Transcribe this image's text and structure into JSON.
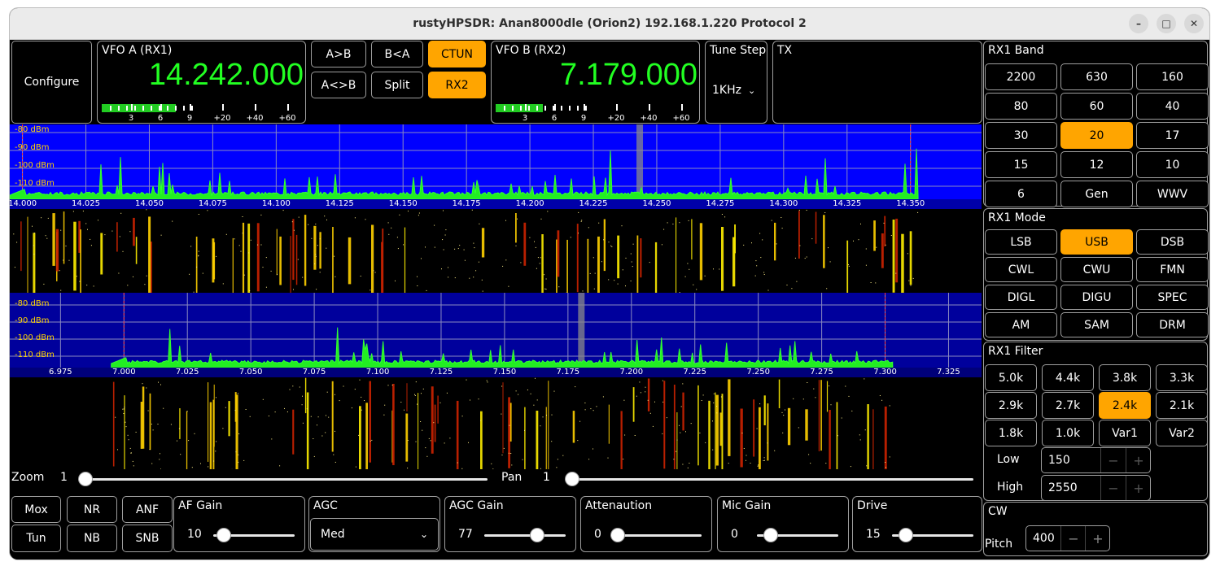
{
  "window": {
    "title": "rustyHPSDR: Anan8000dle (Orion2) 192.168.1.220 Protocol 2",
    "minimize": "–",
    "maximize": "□",
    "close": "✕"
  },
  "configure_label": "Configure",
  "vfo_a": {
    "label": "VFO A (RX1)",
    "frequency": "14.242.000",
    "meter_level": 0.38,
    "scale": [
      "3",
      "6",
      "9",
      "+20",
      "+40",
      "+60"
    ]
  },
  "vfo_b": {
    "label": "VFO B (RX2)",
    "frequency": "7.179.000",
    "meter_level": 0.24,
    "scale": [
      "3",
      "6",
      "9",
      "+20",
      "+40",
      "+60"
    ]
  },
  "vfo_buttons": {
    "a_to_b": "A>B",
    "b_to_a": "B<A",
    "swap": "A<>B",
    "split": "Split",
    "ctun": "CTUN",
    "rx2": "RX2"
  },
  "tune_step": {
    "label": "Tune Step",
    "value": "1KHz"
  },
  "tx": {
    "label": "TX"
  },
  "rx1_panadapter": {
    "dbm_labels": [
      "-80 dBm",
      "-90 dBm",
      "-100 dBm",
      "-110 dBm"
    ],
    "freq_labels": [
      "14.000",
      "14.025",
      "14.050",
      "14.075",
      "14.100",
      "14.125",
      "14.150",
      "14.175",
      "14.200",
      "14.225",
      "14.250",
      "14.275",
      "14.300",
      "14.325",
      "14.350"
    ],
    "range_mhz": [
      13.995,
      14.378
    ],
    "tuned_mhz": 14.242,
    "band_edges_mhz": [
      14.0,
      14.35
    ]
  },
  "rx2_panadapter": {
    "dbm_labels": [
      "-80 dBm",
      "-90 dBm",
      "-100 dBm",
      "-110 dBm"
    ],
    "freq_labels": [
      "6.975",
      "7.000",
      "7.025",
      "7.050",
      "7.075",
      "7.100",
      "7.125",
      "7.150",
      "7.175",
      "7.200",
      "7.225",
      "7.250",
      "7.275",
      "7.300",
      "7.325"
    ],
    "range_mhz": [
      6.955,
      7.338
    ],
    "tuned_mhz": 7.179,
    "band_edges_mhz": [
      7.0,
      7.3
    ]
  },
  "zoom": {
    "label": "Zoom",
    "value": "1",
    "level": 0.0
  },
  "pan": {
    "label": "Pan",
    "value": "1",
    "level": 0.0
  },
  "bottom_buttons": {
    "mox": "Mox",
    "nr": "NR",
    "anf": "ANF",
    "tun": "Tun",
    "nb": "NB",
    "snb": "SNB"
  },
  "af_gain": {
    "label": "AF Gain",
    "value": "10",
    "level": 0.05
  },
  "agc": {
    "label": "AGC",
    "value": "Med"
  },
  "agc_gain": {
    "label": "AGC Gain",
    "value": "77",
    "level": 0.68
  },
  "attenuation": {
    "label": "Attenaution",
    "value": "0",
    "level": 0.0
  },
  "mic_gain": {
    "label": "Mic Gain",
    "value": "0",
    "level": 0.1
  },
  "drive": {
    "label": "Drive",
    "value": "15",
    "level": 0.1
  },
  "rx1_band": {
    "label": "RX1 Band",
    "selected": "20",
    "items": [
      "2200",
      "630",
      "160",
      "80",
      "60",
      "40",
      "30",
      "20",
      "17",
      "15",
      "12",
      "10",
      "6",
      "Gen",
      "WWV"
    ]
  },
  "rx1_mode": {
    "label": "RX1 Mode",
    "selected": "USB",
    "items": [
      "LSB",
      "USB",
      "DSB",
      "CWL",
      "CWU",
      "FMN",
      "DIGL",
      "DIGU",
      "SPEC",
      "AM",
      "SAM",
      "DRM"
    ]
  },
  "rx1_filter": {
    "label": "RX1 Filter",
    "selected": "2.4k",
    "items": [
      "5.0k",
      "4.4k",
      "3.8k",
      "3.3k",
      "2.9k",
      "2.7k",
      "2.4k",
      "2.1k",
      "1.8k",
      "1.0k",
      "Var1",
      "Var2"
    ],
    "low_label": "Low",
    "low_value": "150",
    "high_label": "High",
    "high_value": "2550"
  },
  "cw": {
    "label": "CW",
    "pitch_label": "Pitch",
    "pitch_value": "400"
  },
  "spin": {
    "minus": "−",
    "plus": "+"
  },
  "colors": {
    "accent": "#ffa500",
    "vfo_text": "#22ff22",
    "spectrum": "#22ee22",
    "pan_rx1_bg": "#0000ff",
    "pan_rx2_bg": "#00009c"
  }
}
